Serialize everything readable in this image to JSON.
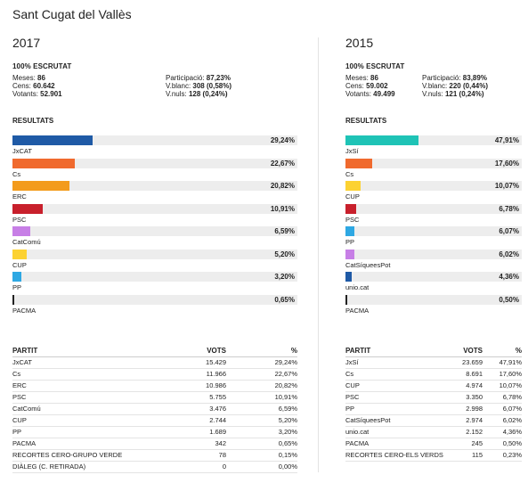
{
  "page_title": "Sant Cugat del Vallès",
  "elections": [
    {
      "year": "2017",
      "scrutat": "100% ESCRUTAT",
      "stats_left": [
        {
          "label": "Meses: ",
          "value": "86"
        },
        {
          "label": "Cens: ",
          "value": "60.642"
        },
        {
          "label": "Votants: ",
          "value": "52.901"
        }
      ],
      "stats_right": [
        {
          "label": "Participació: ",
          "value": "87,23%"
        },
        {
          "label": "V.blanc: ",
          "value": "308 (0,58%)"
        },
        {
          "label": "V.nuls: ",
          "value": "128 (0,24%)"
        }
      ],
      "results_title": "RESULTATS",
      "results": [
        {
          "name": "JxCAT",
          "pct": 29.24,
          "label": "29,24%",
          "color": "#1f5aa6"
        },
        {
          "name": "Cs",
          "pct": 22.67,
          "label": "22,67%",
          "color": "#f06a2e"
        },
        {
          "name": "ERC",
          "pct": 20.82,
          "label": "20,82%",
          "color": "#f39b1c"
        },
        {
          "name": "PSC",
          "pct": 10.91,
          "label": "10,91%",
          "color": "#c8202c"
        },
        {
          "name": "CatComú",
          "pct": 6.59,
          "label": "6,59%",
          "color": "#c77fe6"
        },
        {
          "name": "CUP",
          "pct": 5.2,
          "label": "5,20%",
          "color": "#fcd232"
        },
        {
          "name": "PP",
          "pct": 3.2,
          "label": "3,20%",
          "color": "#2ea8e3"
        },
        {
          "name": "PACMA",
          "pct": 0.65,
          "label": "0,65%",
          "color": "#222222"
        }
      ],
      "table": {
        "headers": [
          "PARTIT",
          "VOTS",
          "%"
        ],
        "rows": [
          [
            "JxCAT",
            "15.429",
            "29,24%"
          ],
          [
            "Cs",
            "11.966",
            "22,67%"
          ],
          [
            "ERC",
            "10.986",
            "20,82%"
          ],
          [
            "PSC",
            "5.755",
            "10,91%"
          ],
          [
            "CatComú",
            "3.476",
            "6,59%"
          ],
          [
            "CUP",
            "2.744",
            "5,20%"
          ],
          [
            "PP",
            "1.689",
            "3,20%"
          ],
          [
            "PACMA",
            "342",
            "0,65%"
          ],
          [
            "RECORTES CERO-GRUPO VERDE",
            "78",
            "0,15%"
          ],
          [
            "DIÀLEG (C. RETIRADA)",
            "0",
            "0,00%"
          ]
        ]
      }
    },
    {
      "year": "2015",
      "scrutat": "100% ESCRUTAT",
      "stats_left": [
        {
          "label": "Meses: ",
          "value": "86"
        },
        {
          "label": "Cens: ",
          "value": "59.002"
        },
        {
          "label": "Votants: ",
          "value": "49.499"
        }
      ],
      "stats_right": [
        {
          "label": "Participació: ",
          "value": "83,89%"
        },
        {
          "label": "V.blanc: ",
          "value": "220 (0,44%)"
        },
        {
          "label": "V.nuls: ",
          "value": "121 (0,24%)"
        }
      ],
      "results_title": "RESULTATS",
      "results": [
        {
          "name": "JxSí",
          "pct": 47.91,
          "label": "47,91%",
          "color": "#1fc3b6"
        },
        {
          "name": "Cs",
          "pct": 17.6,
          "label": "17,60%",
          "color": "#f06a2e"
        },
        {
          "name": "CUP",
          "pct": 10.07,
          "label": "10,07%",
          "color": "#fcd232"
        },
        {
          "name": "PSC",
          "pct": 6.78,
          "label": "6,78%",
          "color": "#c8202c"
        },
        {
          "name": "PP",
          "pct": 6.07,
          "label": "6,07%",
          "color": "#2ea8e3"
        },
        {
          "name": "CatSíqueesPot",
          "pct": 6.02,
          "label": "6,02%",
          "color": "#c77fe6"
        },
        {
          "name": "unio.cat",
          "pct": 4.36,
          "label": "4,36%",
          "color": "#1f5aa6"
        },
        {
          "name": "PACMA",
          "pct": 0.5,
          "label": "0,50%",
          "color": "#222222"
        }
      ],
      "table": {
        "headers": [
          "PARTIT",
          "VOTS",
          "%"
        ],
        "rows": [
          [
            "JxSí",
            "23.659",
            "47,91%"
          ],
          [
            "Cs",
            "8.691",
            "17,60%"
          ],
          [
            "CUP",
            "4.974",
            "10,07%"
          ],
          [
            "PSC",
            "3.350",
            "6,78%"
          ],
          [
            "PP",
            "2.998",
            "6,07%"
          ],
          [
            "CatSíqueesPot",
            "2.974",
            "6,02%"
          ],
          [
            "unio.cat",
            "2.152",
            "4,36%"
          ],
          [
            "PACMA",
            "245",
            "0,50%"
          ],
          [
            "RECORTES CERO-ELS VERDS",
            "115",
            "0,23%"
          ]
        ]
      }
    }
  ]
}
